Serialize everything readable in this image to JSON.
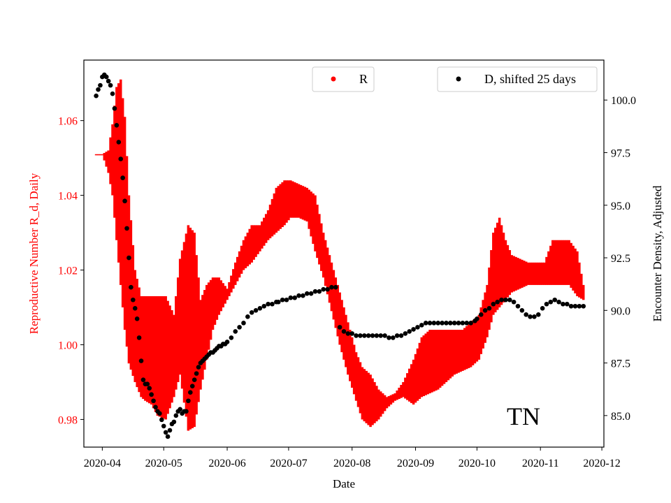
{
  "chart_data": {
    "type": "scatter",
    "title": "",
    "annotation": "TN",
    "xlabel": "Date",
    "ylabel_left": "Reproductive Number R_d, Daily",
    "ylabel_right": "Encounter Density, Adjusted",
    "x_range": [
      "2020-03-23",
      "2020-12-02"
    ],
    "x_ticks": [
      "2020-04",
      "2020-05",
      "2020-06",
      "2020-07",
      "2020-08",
      "2020-09",
      "2020-10",
      "2020-11",
      "2020-12"
    ],
    "ylim_left": [
      0.9726,
      1.0762
    ],
    "ylim_right": [
      83.5,
      101.9
    ],
    "yticks_left": [
      "0.98",
      "1.00",
      "1.02",
      "1.04",
      "1.06"
    ],
    "yticks_right": [
      "85.0",
      "87.5",
      "90.0",
      "92.5",
      "95.0",
      "97.5",
      "100.0"
    ],
    "grid": false,
    "colors": {
      "R": "#ff0000",
      "D": "#000000",
      "left_axis_text": "#ff0000",
      "right_axis_text": "#000000"
    },
    "series": [
      {
        "name": "R",
        "axis": "left",
        "style": "band",
        "color": "#ff0000",
        "x": [
          "2020-03-29",
          "2020-04-01",
          "2020-04-04",
          "2020-04-06",
          "2020-04-08",
          "2020-04-10",
          "2020-04-12",
          "2020-04-14",
          "2020-04-17",
          "2020-04-20",
          "2020-04-22",
          "2020-04-25",
          "2020-04-28",
          "2020-05-02",
          "2020-05-06",
          "2020-05-09",
          "2020-05-13",
          "2020-05-16",
          "2020-05-19",
          "2020-05-22",
          "2020-05-25",
          "2020-05-28",
          "2020-06-01",
          "2020-06-05",
          "2020-06-09",
          "2020-06-13",
          "2020-06-17",
          "2020-06-21",
          "2020-06-25",
          "2020-06-29",
          "2020-07-02",
          "2020-07-06",
          "2020-07-10",
          "2020-07-14",
          "2020-07-18",
          "2020-07-22",
          "2020-07-26",
          "2020-07-30",
          "2020-08-03",
          "2020-08-06",
          "2020-08-10",
          "2020-08-14",
          "2020-08-18",
          "2020-08-22",
          "2020-08-26",
          "2020-08-31",
          "2020-09-04",
          "2020-09-08",
          "2020-09-12",
          "2020-09-16",
          "2020-09-20",
          "2020-09-24",
          "2020-09-28",
          "2020-10-02",
          "2020-10-06",
          "2020-10-09",
          "2020-10-12",
          "2020-10-15",
          "2020-10-18",
          "2020-10-22",
          "2020-10-26",
          "2020-10-30",
          "2020-11-03",
          "2020-11-07",
          "2020-11-11",
          "2020-11-15",
          "2020-11-19",
          "2020-11-22"
        ],
        "upper": [
          1.051,
          1.051,
          1.052,
          1.059,
          1.069,
          1.071,
          1.061,
          1.04,
          1.02,
          1.013,
          1.013,
          1.013,
          1.013,
          1.013,
          1.008,
          1.023,
          1.032,
          1.03,
          1.012,
          1.016,
          1.018,
          1.018,
          1.015,
          1.022,
          1.028,
          1.032,
          1.032,
          1.036,
          1.042,
          1.044,
          1.044,
          1.043,
          1.042,
          1.04,
          1.03,
          1.022,
          1.014,
          1.006,
          0.998,
          0.994,
          0.992,
          0.988,
          0.986,
          0.987,
          0.99,
          0.996,
          1.002,
          1.004,
          1.004,
          1.004,
          1.004,
          1.004,
          1.006,
          1.008,
          1.016,
          1.03,
          1.034,
          1.028,
          1.024,
          1.023,
          1.022,
          1.022,
          1.022,
          1.028,
          1.028,
          1.028,
          1.025,
          1.016
        ],
        "lower": [
          1.051,
          1.051,
          1.046,
          1.04,
          1.028,
          1.016,
          1.004,
          0.995,
          0.99,
          0.986,
          0.985,
          0.984,
          0.981,
          0.98,
          0.986,
          0.992,
          0.977,
          0.978,
          0.988,
          0.996,
          1.004,
          1.008,
          1.012,
          1.016,
          1.02,
          1.022,
          1.025,
          1.028,
          1.03,
          1.032,
          1.034,
          1.034,
          1.033,
          1.025,
          1.018,
          1.009,
          1.0,
          0.992,
          0.985,
          0.98,
          0.978,
          0.98,
          0.983,
          0.985,
          0.986,
          0.984,
          0.986,
          0.987,
          0.988,
          0.99,
          0.992,
          0.993,
          0.994,
          0.996,
          1.002,
          1.008,
          1.01,
          1.012,
          1.014,
          1.015,
          1.016,
          1.016,
          1.016,
          1.016,
          1.016,
          1.016,
          1.013,
          1.012
        ]
      },
      {
        "name": "D, shifted 25 days",
        "axis": "right",
        "style": "dots",
        "color": "#000000",
        "x": [
          "2020-03-29",
          "2020-03-30",
          "2020-03-31",
          "2020-04-01",
          "2020-04-02",
          "2020-04-03",
          "2020-04-04",
          "2020-04-05",
          "2020-04-06",
          "2020-04-07",
          "2020-04-08",
          "2020-04-09",
          "2020-04-10",
          "2020-04-11",
          "2020-04-12",
          "2020-04-13",
          "2020-04-14",
          "2020-04-15",
          "2020-04-16",
          "2020-04-17",
          "2020-04-18",
          "2020-04-19",
          "2020-04-20",
          "2020-04-21",
          "2020-04-22",
          "2020-04-23",
          "2020-04-24",
          "2020-04-25",
          "2020-04-26",
          "2020-04-27",
          "2020-04-28",
          "2020-04-29",
          "2020-04-30",
          "2020-05-01",
          "2020-05-02",
          "2020-05-03",
          "2020-05-04",
          "2020-05-05",
          "2020-05-06",
          "2020-05-07",
          "2020-05-08",
          "2020-05-09",
          "2020-05-10",
          "2020-05-11",
          "2020-05-12",
          "2020-05-13",
          "2020-05-14",
          "2020-05-15",
          "2020-05-16",
          "2020-05-17",
          "2020-05-18",
          "2020-05-19",
          "2020-05-20",
          "2020-05-21",
          "2020-05-22",
          "2020-05-23",
          "2020-05-24",
          "2020-05-25",
          "2020-05-26",
          "2020-05-27",
          "2020-05-28",
          "2020-05-29",
          "2020-05-30",
          "2020-05-31",
          "2020-06-01",
          "2020-06-03",
          "2020-06-05",
          "2020-06-07",
          "2020-06-09",
          "2020-06-11",
          "2020-06-13",
          "2020-06-15",
          "2020-06-17",
          "2020-06-19",
          "2020-06-21",
          "2020-06-23",
          "2020-06-25",
          "2020-06-26",
          "2020-06-28",
          "2020-06-30",
          "2020-07-02",
          "2020-07-04",
          "2020-07-06",
          "2020-07-08",
          "2020-07-10",
          "2020-07-12",
          "2020-07-14",
          "2020-07-16",
          "2020-07-18",
          "2020-07-20",
          "2020-07-22",
          "2020-07-24",
          "2020-07-26",
          "2020-07-28",
          "2020-07-30",
          "2020-08-01",
          "2020-08-03",
          "2020-08-05",
          "2020-08-07",
          "2020-08-09",
          "2020-08-11",
          "2020-08-13",
          "2020-08-15",
          "2020-08-17",
          "2020-08-19",
          "2020-08-21",
          "2020-08-23",
          "2020-08-25",
          "2020-08-27",
          "2020-08-29",
          "2020-08-31",
          "2020-09-02",
          "2020-09-04",
          "2020-09-06",
          "2020-09-08",
          "2020-09-10",
          "2020-09-12",
          "2020-09-14",
          "2020-09-16",
          "2020-09-18",
          "2020-09-20",
          "2020-09-22",
          "2020-09-24",
          "2020-09-26",
          "2020-09-28",
          "2020-09-30",
          "2020-10-01",
          "2020-10-03",
          "2020-10-05",
          "2020-10-07",
          "2020-10-09",
          "2020-10-11",
          "2020-10-13",
          "2020-10-15",
          "2020-10-17",
          "2020-10-19",
          "2020-10-21",
          "2020-10-23",
          "2020-10-25",
          "2020-10-27",
          "2020-10-29",
          "2020-10-31",
          "2020-11-02",
          "2020-11-04",
          "2020-11-06",
          "2020-11-08",
          "2020-11-10",
          "2020-11-12",
          "2020-11-14",
          "2020-11-16",
          "2020-11-18",
          "2020-11-20",
          "2020-11-22"
        ],
        "values": [
          100.2,
          100.5,
          100.7,
          101.1,
          101.2,
          101.1,
          100.9,
          100.7,
          100.3,
          99.6,
          98.8,
          98.0,
          97.2,
          96.3,
          95.2,
          93.9,
          92.5,
          91.1,
          90.5,
          90.1,
          89.6,
          88.7,
          87.6,
          86.7,
          86.5,
          86.5,
          86.3,
          86.0,
          85.7,
          85.4,
          85.2,
          85.1,
          84.8,
          84.5,
          84.2,
          84.0,
          84.3,
          84.6,
          84.7,
          85.0,
          85.2,
          85.3,
          85.1,
          85.2,
          85.2,
          85.7,
          86.1,
          86.4,
          86.7,
          87.0,
          87.3,
          87.5,
          87.6,
          87.7,
          87.8,
          87.9,
          88.0,
          88.0,
          88.1,
          88.2,
          88.3,
          88.3,
          88.4,
          88.4,
          88.5,
          88.7,
          89.0,
          89.2,
          89.4,
          89.7,
          89.9,
          90.0,
          90.1,
          90.2,
          90.3,
          90.3,
          90.4,
          90.4,
          90.5,
          90.5,
          90.6,
          90.6,
          90.7,
          90.7,
          90.8,
          90.8,
          90.9,
          90.9,
          91.0,
          91.0,
          91.1,
          91.1,
          89.2,
          89.0,
          88.9,
          88.9,
          88.8,
          88.8,
          88.8,
          88.8,
          88.8,
          88.8,
          88.8,
          88.8,
          88.7,
          88.7,
          88.8,
          88.8,
          88.9,
          89.0,
          89.1,
          89.2,
          89.3,
          89.4,
          89.4,
          89.4,
          89.4,
          89.4,
          89.4,
          89.4,
          89.4,
          89.4,
          89.4,
          89.4,
          89.4,
          89.5,
          89.6,
          89.8,
          90.0,
          90.1,
          90.3,
          90.4,
          90.5,
          90.5,
          90.5,
          90.4,
          90.2,
          90.0,
          89.8,
          89.7,
          89.7,
          89.8,
          90.1,
          90.3,
          90.4,
          90.5,
          90.4,
          90.3,
          90.3,
          90.2,
          90.2,
          90.2,
          90.2
        ]
      }
    ],
    "legends": [
      {
        "label": "R",
        "color": "#ff0000",
        "placement": "top-center"
      },
      {
        "label": "D, shifted 25 days",
        "color": "#000000",
        "placement": "top-right"
      }
    ]
  }
}
